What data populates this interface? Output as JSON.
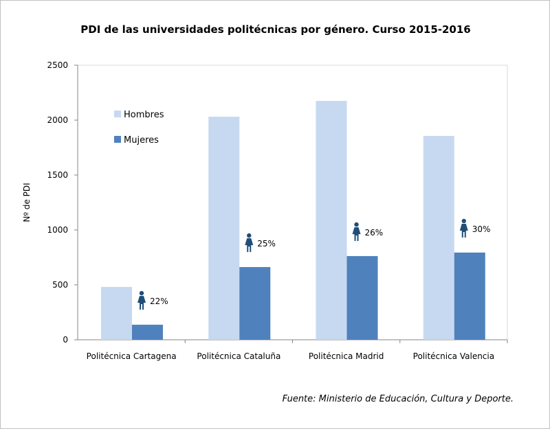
{
  "chart_data": {
    "type": "bar",
    "title": "PDI de las universidades politécnicas por género. Curso 2015-2016",
    "ylabel": "Nº de PDI",
    "xlabel": "",
    "ylim": [
      0,
      2500
    ],
    "yticks": [
      0,
      500,
      1000,
      1500,
      2000,
      2500
    ],
    "categories": [
      "Politécnica Cartagena",
      "Politécnica Cataluña",
      "Politécnica Madrid",
      "Politécnica Valencia"
    ],
    "series": [
      {
        "name": "Hombres",
        "color": "#c6d9f0",
        "values": [
          481,
          2031,
          2175,
          1856
        ]
      },
      {
        "name": "Mujeres",
        "color": "#4f81bd",
        "values": [
          137,
          662,
          762,
          794
        ]
      }
    ],
    "annotations": [
      "22%",
      "25%",
      "26%",
      "30%"
    ],
    "annotation_icon": "woman-icon",
    "legend_position": "top-left",
    "grid": false
  },
  "source": "Fuente: Ministerio  de Educación,  Cultura y Deporte."
}
